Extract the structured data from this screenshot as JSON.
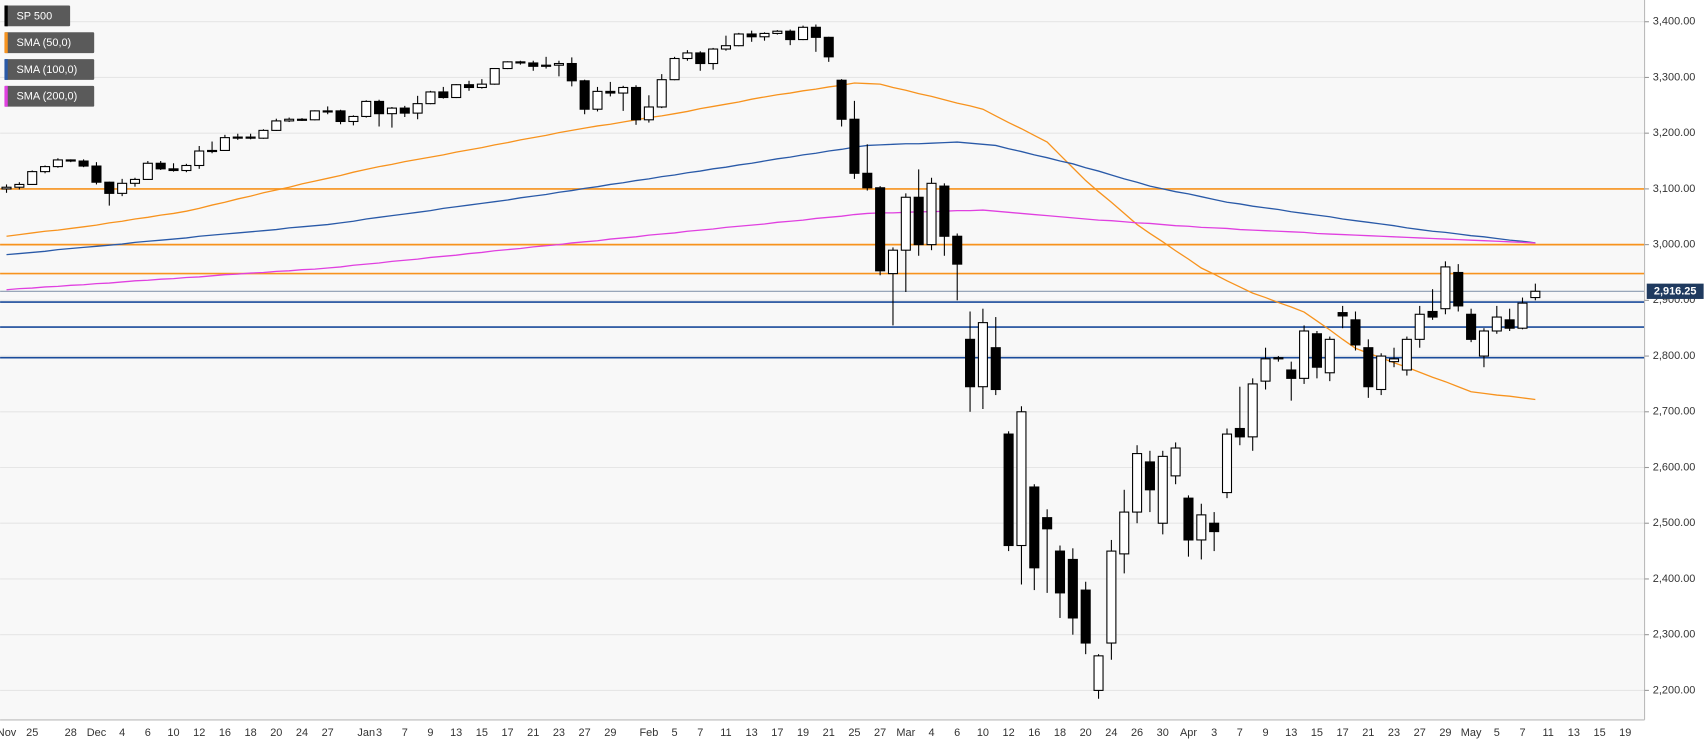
{
  "chart_data": {
    "type": "candlestick",
    "legend": "top-left",
    "grid": true,
    "categories": [
      "Nov",
      null,
      "25",
      null,
      null,
      "28",
      null,
      "Dec",
      null,
      "4",
      null,
      "6",
      null,
      "10",
      null,
      "12",
      null,
      "16",
      null,
      "18",
      null,
      "20",
      null,
      "24",
      null,
      "27",
      null,
      null,
      "Jan",
      "3",
      null,
      "7",
      null,
      "9",
      null,
      "13",
      null,
      "15",
      null,
      "17",
      null,
      "21",
      null,
      "23",
      null,
      "27",
      null,
      "29",
      null,
      null,
      "Feb",
      null,
      "5",
      null,
      "7",
      null,
      "11",
      null,
      "13",
      null,
      "17",
      null,
      "19",
      null,
      "21",
      null,
      "25",
      null,
      "27",
      null,
      "Mar",
      null,
      "4",
      null,
      "6",
      null,
      "10",
      null,
      "12",
      null,
      "16",
      null,
      "18",
      null,
      "20",
      null,
      "24",
      null,
      "26",
      null,
      "30",
      null,
      "Apr",
      null,
      "3",
      null,
      "7",
      null,
      "9",
      null,
      "13",
      null,
      "15",
      null,
      "17",
      null,
      "21",
      null,
      "23",
      null,
      "27",
      null,
      "29",
      null,
      "May",
      null,
      "5",
      null,
      "7",
      null,
      "11",
      null,
      "13",
      null,
      "15",
      null,
      "19",
      null
    ],
    "series": [
      {
        "name": "SP 500",
        "type": "candlestick",
        "color": "#000000",
        "open": [
          3100,
          3103,
          3108,
          3131,
          3140,
          3152,
          3150,
          3141,
          3112,
          3092,
          3110,
          3117,
          3146,
          3136,
          3133,
          3142,
          3168,
          3169,
          3192,
          3193,
          3191,
          3205,
          3222,
          3225,
          3224,
          3240,
          3240,
          3221,
          3230,
          3257,
          3235,
          3245,
          3236,
          3253,
          3274,
          3264,
          3287,
          3282,
          3288,
          3316,
          3328,
          3326,
          3320,
          3322,
          3325,
          3294,
          3243,
          3275,
          3272,
          3282,
          3224,
          3247,
          3296,
          3334,
          3344,
          3325,
          3351,
          3357,
          3378,
          3373,
          3379,
          3383,
          3368,
          3390,
          3372,
          3295,
          3225,
          3128,
          3102,
          2948,
          2990,
          3085,
          3000,
          3105,
          3015,
          2830,
          2745,
          2815,
          2660,
          2460,
          2565,
          2510,
          2450,
          2435,
          2380,
          2200,
          2285,
          2445,
          2520,
          2610,
          2500,
          2585,
          2545,
          2470,
          2500,
          2555,
          2670,
          2655,
          2755,
          2795,
          2775,
          2760,
          2840,
          2770,
          2878,
          2865,
          2815,
          2740,
          2790,
          2775,
          2830,
          2880,
          2885,
          2950,
          2875,
          2800,
          2845,
          2865,
          2850,
          2905,
          null,
          null,
          null,
          null,
          null,
          null,
          null,
          null
        ],
        "high": [
          3108,
          3112,
          3133,
          3142,
          3155,
          3153,
          3153,
          3148,
          3113,
          3118,
          3120,
          3150,
          3150,
          3146,
          3145,
          3177,
          3185,
          3197,
          3199,
          3199,
          3207,
          3226,
          3228,
          3227,
          3241,
          3248,
          3242,
          3232,
          3259,
          3260,
          3247,
          3249,
          3267,
          3276,
          3283,
          3288,
          3294,
          3297,
          3317,
          3329,
          3330,
          3330,
          3337,
          3330,
          3336,
          3296,
          3283,
          3292,
          3285,
          3286,
          3268,
          3306,
          3337,
          3349,
          3347,
          3353,
          3375,
          3380,
          3384,
          3381,
          3385,
          3386,
          3393,
          3395,
          3373,
          3297,
          3258,
          3180,
          3105,
          2995,
          3092,
          3135,
          3120,
          3110,
          3020,
          2880,
          2885,
          2870,
          2665,
          2710,
          2570,
          2525,
          2460,
          2455,
          2395,
          2265,
          2470,
          2560,
          2640,
          2630,
          2630,
          2645,
          2550,
          2535,
          2520,
          2670,
          2745,
          2760,
          2815,
          2800,
          2790,
          2855,
          2845,
          2835,
          2890,
          2880,
          2830,
          2805,
          2815,
          2835,
          2890,
          2920,
          2970,
          2965,
          2885,
          2850,
          2890,
          2885,
          2905,
          2930,
          null,
          null,
          null,
          null,
          null,
          null,
          null,
          null
        ],
        "low": [
          3093,
          3099,
          3107,
          3128,
          3138,
          3148,
          3139,
          3108,
          3070,
          3087,
          3104,
          3116,
          3134,
          3131,
          3130,
          3136,
          3164,
          3169,
          3188,
          3189,
          3190,
          3204,
          3220,
          3222,
          3223,
          3234,
          3216,
          3214,
          3228,
          3212,
          3210,
          3229,
          3225,
          3252,
          3262,
          3263,
          3276,
          3280,
          3287,
          3315,
          3323,
          3312,
          3316,
          3302,
          3284,
          3234,
          3239,
          3266,
          3240,
          3215,
          3219,
          3245,
          3295,
          3330,
          3312,
          3314,
          3348,
          3356,
          3364,
          3366,
          3377,
          3358,
          3367,
          3346,
          3328,
          3212,
          3118,
          3097,
          2945,
          2855,
          2915,
          2980,
          2990,
          2980,
          2900,
          2700,
          2705,
          2730,
          2450,
          2390,
          2380,
          2375,
          2330,
          2300,
          2265,
          2185,
          2255,
          2410,
          2500,
          2520,
          2480,
          2570,
          2440,
          2435,
          2450,
          2545,
          2640,
          2630,
          2740,
          2790,
          2720,
          2750,
          2760,
          2755,
          2850,
          2810,
          2725,
          2730,
          2780,
          2765,
          2815,
          2865,
          2875,
          2880,
          2825,
          2780,
          2840,
          2845,
          2848,
          2900,
          null,
          null,
          null,
          null,
          null,
          null,
          null,
          null
        ],
        "close": [
          3103,
          3108,
          3131,
          3140,
          3152,
          3150,
          3141,
          3112,
          3092,
          3110,
          3117,
          3146,
          3136,
          3133,
          3142,
          3168,
          3169,
          3192,
          3193,
          3191,
          3205,
          3222,
          3225,
          3224,
          3240,
          3240,
          3221,
          3230,
          3257,
          3235,
          3245,
          3236,
          3253,
          3274,
          3264,
          3287,
          3282,
          3288,
          3316,
          3328,
          3326,
          3320,
          3322,
          3325,
          3294,
          3243,
          3275,
          3272,
          3282,
          3224,
          3247,
          3296,
          3334,
          3344,
          3325,
          3351,
          3357,
          3378,
          3373,
          3379,
          3383,
          3368,
          3390,
          3372,
          3337,
          3225,
          3128,
          3102,
          2953,
          2990,
          3085,
          3000,
          3110,
          3015,
          2965,
          2745,
          2860,
          2740,
          2460,
          2700,
          2420,
          2490,
          2375,
          2330,
          2285,
          2262,
          2450,
          2520,
          2625,
          2560,
          2620,
          2635,
          2470,
          2515,
          2485,
          2660,
          2655,
          2750,
          2795,
          2797,
          2760,
          2845,
          2780,
          2830,
          2872,
          2820,
          2745,
          2800,
          2795,
          2830,
          2875,
          2870,
          2960,
          2890,
          2830,
          2845,
          2870,
          2850,
          2895,
          2916.25,
          null,
          null,
          null,
          null,
          null,
          null,
          null,
          null
        ]
      },
      {
        "name": "SMA (50,0)",
        "type": "line",
        "color": "#f7931e",
        "values": [
          3015,
          3018,
          3021,
          3024,
          3026,
          3029,
          3032,
          3035,
          3039,
          3042,
          3046,
          3049,
          3053,
          3056,
          3060,
          3065,
          3071,
          3076,
          3082,
          3087,
          3093,
          3098,
          3103,
          3109,
          3114,
          3119,
          3124,
          3130,
          3135,
          3140,
          3144,
          3149,
          3153,
          3157,
          3161,
          3166,
          3170,
          3174,
          3179,
          3183,
          3188,
          3192,
          3196,
          3201,
          3205,
          3209,
          3213,
          3216,
          3220,
          3224,
          3228,
          3231,
          3235,
          3239,
          3244,
          3248,
          3252,
          3256,
          3261,
          3265,
          3269,
          3272,
          3276,
          3279,
          3283,
          3286,
          3290,
          3289,
          3288,
          3282,
          3277,
          3271,
          3266,
          3260,
          3254,
          3249,
          3243,
          3231,
          3219,
          3208,
          3196,
          3184,
          3161,
          3138,
          3115,
          3095,
          3076,
          3056,
          3036,
          3020,
          3005,
          2989,
          2974,
          2958,
          2947,
          2935,
          2924,
          2913,
          2905,
          2896,
          2888,
          2879,
          2863,
          2847,
          2830,
          2814,
          2805,
          2797,
          2788,
          2780,
          2771,
          2762,
          2754,
          2745,
          2736,
          2733,
          2730,
          2728,
          2725,
          2722,
          null,
          null,
          null,
          null,
          null,
          null,
          null,
          null
        ]
      },
      {
        "name": "SMA (100,0)",
        "type": "line",
        "color": "#2a5aa8",
        "values": [
          2982,
          2984,
          2986,
          2988,
          2991,
          2993,
          2995,
          2997,
          2999,
          3001,
          3004,
          3006,
          3008,
          3010,
          3012,
          3015,
          3017,
          3019,
          3021,
          3023,
          3025,
          3027,
          3030,
          3032,
          3034,
          3036,
          3039,
          3042,
          3046,
          3049,
          3052,
          3055,
          3058,
          3061,
          3065,
          3068,
          3071,
          3074,
          3077,
          3080,
          3084,
          3087,
          3090,
          3094,
          3097,
          3101,
          3104,
          3108,
          3111,
          3115,
          3118,
          3122,
          3125,
          3129,
          3132,
          3136,
          3139,
          3143,
          3146,
          3150,
          3154,
          3157,
          3161,
          3164,
          3168,
          3171,
          3175,
          3178,
          3179,
          3180,
          3181,
          3181,
          3182,
          3183,
          3184,
          3182,
          3180,
          3178,
          3172,
          3167,
          3161,
          3156,
          3150,
          3145,
          3138,
          3132,
          3125,
          3118,
          3112,
          3105,
          3100,
          3095,
          3091,
          3086,
          3081,
          3076,
          3073,
          3069,
          3066,
          3063,
          3059,
          3056,
          3053,
          3050,
          3046,
          3043,
          3040,
          3037,
          3034,
          3030,
          3027,
          3024,
          3022,
          3019,
          3016,
          3014,
          3011,
          3008,
          3006,
          3003,
          null,
          null,
          null,
          null,
          null,
          null,
          null,
          null
        ]
      },
      {
        "name": "SMA (200,0)",
        "type": "line",
        "color": "#e040e0",
        "values": [
          2919,
          2921,
          2922,
          2924,
          2925,
          2927,
          2928,
          2930,
          2931,
          2933,
          2935,
          2936,
          2938,
          2939,
          2941,
          2942,
          2944,
          2946,
          2947,
          2949,
          2950,
          2952,
          2953,
          2955,
          2956,
          2958,
          2960,
          2963,
          2965,
          2967,
          2970,
          2972,
          2974,
          2977,
          2979,
          2981,
          2984,
          2986,
          2989,
          2991,
          2993,
          2996,
          2998,
          3000,
          3003,
          3005,
          3007,
          3010,
          3012,
          3014,
          3017,
          3019,
          3021,
          3024,
          3026,
          3028,
          3031,
          3033,
          3035,
          3037,
          3040,
          3042,
          3044,
          3047,
          3049,
          3051,
          3054,
          3056,
          3057,
          3057,
          3058,
          3059,
          3059,
          3060,
          3061,
          3061,
          3062,
          3060,
          3058,
          3056,
          3054,
          3052,
          3050,
          3048,
          3046,
          3044,
          3043,
          3041,
          3039,
          3038,
          3036,
          3034,
          3033,
          3031,
          3030,
          3029,
          3027,
          3026,
          3025,
          3024,
          3023,
          3022,
          3020,
          3019,
          3018,
          3017,
          3016,
          3015,
          3014,
          3013,
          3012,
          3011,
          3010,
          3009,
          3008,
          3007,
          3006,
          3005,
          3004,
          3003,
          null,
          null,
          null,
          null,
          null,
          null,
          null,
          null
        ]
      }
    ],
    "levels": [
      {
        "value": 3100,
        "color": "#f7931e"
      },
      {
        "value": 3000,
        "color": "#f7931e"
      },
      {
        "value": 2948,
        "color": "#f7931e"
      },
      {
        "value": 2897,
        "color": "#1a4b9b"
      },
      {
        "value": 2852,
        "color": "#1a4b9b"
      },
      {
        "value": 2797,
        "color": "#1a4b9b"
      }
    ],
    "last_price": {
      "value": 2916.25,
      "label": "2,916.25"
    },
    "ylim": [
      2147,
      3439
    ],
    "yticks": [
      {
        "value": 2200,
        "label": "2,200.00"
      },
      {
        "value": 2300,
        "label": "2,300.00"
      },
      {
        "value": 2400,
        "label": "2,400.00"
      },
      {
        "value": 2500,
        "label": "2,500.00"
      },
      {
        "value": 2600,
        "label": "2,600.00"
      },
      {
        "value": 2700,
        "label": "2,700.00"
      },
      {
        "value": 2800,
        "label": "2,800.00"
      },
      {
        "value": 2900,
        "label": "2,900.00"
      },
      {
        "value": 3000,
        "label": "3,000.00"
      },
      {
        "value": 3100,
        "label": "3,100.00"
      },
      {
        "value": 3200,
        "label": "3,200.00"
      },
      {
        "value": 3300,
        "label": "3,300.00"
      },
      {
        "value": 3400,
        "label": "3,400.00"
      }
    ]
  }
}
